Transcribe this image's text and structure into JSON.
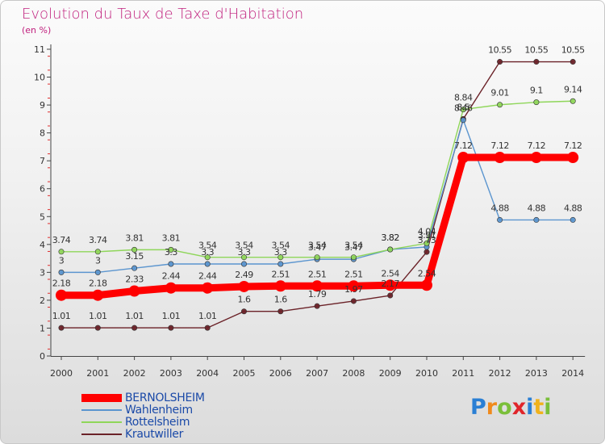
{
  "header": {
    "title": "Evolution du Taux de Taxe d'Habitation",
    "unit": "(en %)"
  },
  "logo": {
    "text": "Proxiti"
  },
  "chart_data": {
    "type": "line",
    "title": "Evolution du Taux de Taxe d'Habitation",
    "subtitle": "(en %)",
    "xlabel": "",
    "ylabel": "",
    "x": [
      "2000",
      "2001",
      "2002",
      "2003",
      "2004",
      "2005",
      "2006",
      "2007",
      "2008",
      "2009",
      "2010",
      "2011",
      "2012",
      "2013",
      "2014"
    ],
    "ylim": [
      0,
      11
    ],
    "yticks": [
      0,
      1,
      2,
      3,
      4,
      5,
      6,
      7,
      8,
      9,
      10,
      11
    ],
    "grid": false,
    "legend_position": "bottom-left",
    "series": [
      {
        "name": "BERNOLSHEIM",
        "color": "#ff0000",
        "values": [
          2.18,
          2.18,
          2.33,
          2.44,
          2.44,
          2.49,
          2.51,
          2.51,
          2.51,
          2.54,
          2.54,
          7.12,
          7.12,
          7.12,
          7.12
        ],
        "labels": [
          "2.18",
          "2.18",
          "2.33",
          "2.44",
          "2.44",
          "2.49",
          "2.51",
          "2.51",
          "2.51",
          "2.54",
          "2.54",
          "7.12",
          "7.12",
          "7.12",
          "7.12"
        ]
      },
      {
        "name": "Wahlenheim",
        "color": "#5b95cf",
        "values": [
          3,
          3,
          3.15,
          3.3,
          3.3,
          3.3,
          3.3,
          3.47,
          3.47,
          3.82,
          3.91,
          8.46,
          4.88,
          4.88,
          4.88
        ],
        "labels": [
          "3",
          "3",
          "3.15",
          "3.3",
          "3.3",
          "3.3",
          "3.3",
          "3.47",
          "3.47",
          "3.82",
          "3.91",
          "8.46",
          "4.88",
          "4.88",
          "4.88"
        ]
      },
      {
        "name": "Rottelsheim",
        "color": "#8fd65a",
        "values": [
          3.74,
          3.74,
          3.81,
          3.81,
          3.54,
          3.54,
          3.54,
          3.54,
          3.54,
          3.82,
          4.04,
          8.84,
          9.01,
          9.1,
          9.14
        ],
        "labels": [
          "3.74",
          "3.74",
          "3.81",
          "3.81",
          "3.54",
          "3.54",
          "3.54",
          "3.54",
          "3.54",
          "3.82",
          "4.04",
          "8.84",
          "9.01",
          "9.1",
          "9.14"
        ]
      },
      {
        "name": "Krautwiller",
        "color": "#6b2228",
        "values": [
          1.01,
          1.01,
          1.01,
          1.01,
          1.01,
          1.6,
          1.6,
          1.79,
          1.97,
          2.17,
          3.73,
          8.5,
          10.55,
          10.55,
          10.55
        ],
        "labels": [
          "1.01",
          "1.01",
          "1.01",
          "1.01",
          "1.01",
          "1.6",
          "1.6",
          "1.79",
          "1.97",
          "2.17",
          "3.73",
          "8.5",
          "10.55",
          "10.55",
          "10.55"
        ]
      }
    ]
  }
}
